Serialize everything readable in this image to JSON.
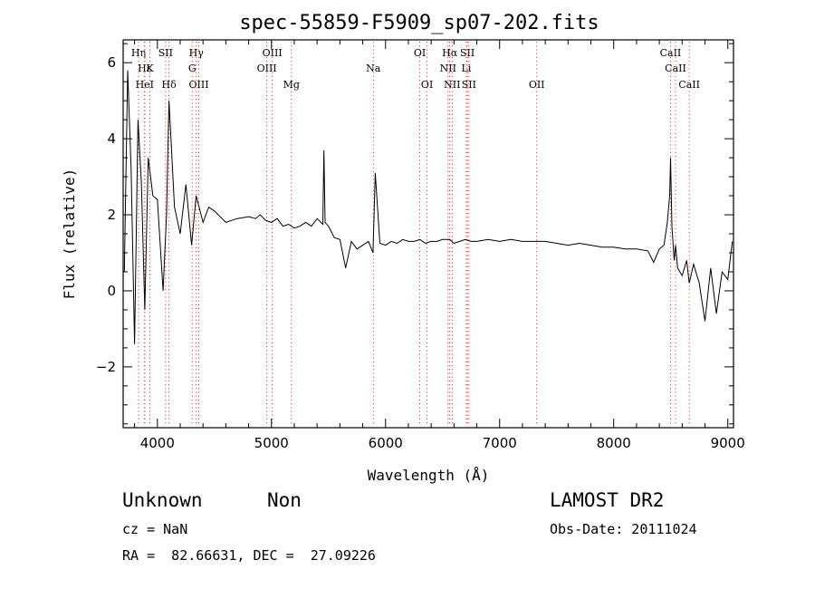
{
  "chart_data": {
    "type": "line",
    "title": "spec-55859-F5909_sp07-202.fits",
    "xlabel": "Wavelength (Å)",
    "ylabel": "Flux (relative)",
    "xlim": [
      3700,
      9050
    ],
    "ylim": [
      -3.6,
      6.6
    ],
    "xticks": [
      4000,
      5000,
      6000,
      7000,
      8000,
      9000
    ],
    "yticks": [
      -2,
      0,
      2,
      4,
      6
    ],
    "xminor_step": 200,
    "yminor_step": 0.5,
    "series": [
      {
        "name": "flux",
        "x": [
          3710,
          3740,
          3770,
          3800,
          3830,
          3860,
          3890,
          3920,
          3960,
          4000,
          4050,
          4080,
          4102,
          4150,
          4200,
          4250,
          4300,
          4340,
          4400,
          4450,
          4500,
          4600,
          4700,
          4800,
          4861,
          4900,
          4950,
          5000,
          5050,
          5100,
          5150,
          5200,
          5250,
          5300,
          5350,
          5400,
          5450,
          5460,
          5470,
          5500,
          5550,
          5600,
          5650,
          5700,
          5750,
          5800,
          5850,
          5890,
          5910,
          5950,
          6000,
          6050,
          6100,
          6150,
          6200,
          6250,
          6300,
          6350,
          6400,
          6450,
          6500,
          6563,
          6600,
          6650,
          6700,
          6750,
          6800,
          6900,
          7000,
          7100,
          7200,
          7300,
          7400,
          7500,
          7600,
          7700,
          7800,
          7900,
          8000,
          8100,
          8200,
          8300,
          8350,
          8400,
          8440,
          8470,
          8490,
          8498,
          8510,
          8530,
          8542,
          8560,
          8600,
          8640,
          8662,
          8700,
          8750,
          8800,
          8850,
          8900,
          8950,
          9000,
          9040
        ],
        "y": [
          0.5,
          5.8,
          3.2,
          -1.4,
          4.5,
          2.8,
          -0.5,
          3.5,
          2.5,
          2.4,
          0.0,
          2.0,
          5.0,
          2.2,
          1.5,
          2.8,
          1.2,
          2.5,
          1.8,
          2.2,
          2.1,
          1.8,
          1.9,
          1.95,
          1.9,
          2.0,
          1.85,
          1.8,
          1.9,
          1.7,
          1.75,
          1.65,
          1.7,
          1.8,
          1.7,
          1.9,
          1.75,
          3.7,
          1.8,
          1.7,
          1.4,
          1.35,
          0.6,
          1.3,
          1.1,
          1.2,
          1.3,
          1.0,
          3.1,
          1.25,
          1.2,
          1.3,
          1.25,
          1.35,
          1.3,
          1.3,
          1.35,
          1.25,
          1.3,
          1.3,
          1.35,
          1.35,
          1.25,
          1.3,
          1.35,
          1.3,
          1.3,
          1.35,
          1.3,
          1.35,
          1.3,
          1.3,
          1.3,
          1.25,
          1.2,
          1.25,
          1.2,
          1.15,
          1.15,
          1.1,
          1.1,
          1.05,
          0.75,
          1.1,
          1.2,
          1.8,
          2.5,
          3.5,
          1.7,
          0.8,
          1.2,
          0.6,
          0.4,
          0.8,
          0.2,
          0.7,
          0.2,
          -0.8,
          0.6,
          -0.6,
          0.5,
          0.3,
          1.3
        ]
      }
    ],
    "line_marks": [
      {
        "label": "Hγ",
        "wave": 4341,
        "row": 1
      },
      {
        "label": "G",
        "wave": 4305,
        "row": 2
      },
      {
        "label": "OIII",
        "wave": 4363,
        "row": 3
      },
      {
        "label": "OIII",
        "wave": 4959,
        "row": 2
      },
      {
        "label": "OIII",
        "wave": 5007,
        "row": 1
      },
      {
        "label": "Mg",
        "wave": 5175,
        "row": 3
      },
      {
        "label": "Na",
        "wave": 5893,
        "row": 2
      },
      {
        "label": "OI",
        "wave": 6300,
        "row": 1
      },
      {
        "label": "OI",
        "wave": 6364,
        "row": 3
      },
      {
        "label": "Hα",
        "wave": 6563,
        "row": 1
      },
      {
        "label": "NII",
        "wave": 6548,
        "row": 2
      },
      {
        "label": "NII",
        "wave": 6584,
        "row": 3
      },
      {
        "label": "SII",
        "wave": 6717,
        "row": 1
      },
      {
        "label": "SII",
        "wave": 6731,
        "row": 3
      },
      {
        "label": "Li",
        "wave": 6708,
        "row": 2
      },
      {
        "label": "OII",
        "wave": 7325,
        "row": 3
      },
      {
        "label": "CaII",
        "wave": 8498,
        "row": 1
      },
      {
        "label": "CaII",
        "wave": 8542,
        "row": 2
      },
      {
        "label": "CaII",
        "wave": 8662,
        "row": 3
      }
    ],
    "blue_marks": [
      {
        "label": "Hη",
        "wave": 3835,
        "row": 1
      },
      {
        "label": "Hε",
        "wave": 3889,
        "row": 2
      },
      {
        "label": "K",
        "wave": 3934,
        "row": 2
      },
      {
        "label": "HeI",
        "wave": 3889,
        "row": 3
      },
      {
        "label": "SII",
        "wave": 4072,
        "row": 1
      },
      {
        "label": "Hδ",
        "wave": 4102,
        "row": 3
      }
    ]
  },
  "info": {
    "class": "Unknown",
    "subclass": "Non",
    "survey": "LAMOST DR2",
    "cz": "cz = NaN",
    "obs_date": "Obs-Date: 20111024",
    "radec": "RA =  82.66631, DEC =  27.09226"
  },
  "colors": {
    "line": "#000000",
    "marker": "#ff0000",
    "axis": "#000000"
  }
}
